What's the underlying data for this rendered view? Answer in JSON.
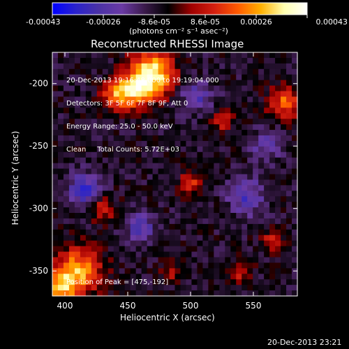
{
  "colorbar": {
    "tick_labels": [
      "-0.00043",
      "-0.00026",
      "-8.6e-05",
      "8.6e-05",
      "0.00026",
      "0.00043"
    ],
    "unit_label": "(photons cm⁻² s⁻¹ asec⁻²)"
  },
  "annotations": {
    "time_range": "20-Dec-2013 19:16:48.000 to 19:19:04.000",
    "detectors": "Detectors: 3F 5F 6F 7F 8F 9F, Att 0",
    "energy_range": "Energy Range: 25.0 - 50.0 keV",
    "method": "Clean     Total Counts: 5.72E+03",
    "peak": "Position of Peak = [475,-192]"
  },
  "footer": {
    "timestamp": "20-Dec-2013 23:21"
  },
  "chart_data": {
    "type": "heatmap",
    "title": "Reconstructed RHESSI Image",
    "xlabel": "Heliocentric X (arcsec)",
    "ylabel": "Heliocentric Y (arcsec)",
    "xlim": [
      390,
      585
    ],
    "ylim": [
      -370,
      -175
    ],
    "x_ticks": [
      400,
      450,
      500,
      550
    ],
    "y_ticks": [
      -200,
      -250,
      -300,
      -350
    ],
    "x_tick_labels": [
      "400",
      "450",
      "500",
      "550"
    ],
    "y_tick_labels": [
      "-200",
      "-250",
      "-300",
      "-350"
    ],
    "colorbar_range": [
      -0.00043,
      0.00043
    ],
    "peak": {
      "x": 475,
      "y": -192
    },
    "colormap": [
      "#0000ff",
      "#2a22cc",
      "#4b32a6",
      "#6a3aa4",
      "#3a1a4a",
      "#000000",
      "#a00000",
      "#d42010",
      "#ff5a00",
      "#ffb000",
      "#ffffb0",
      "#ffffff"
    ]
  }
}
